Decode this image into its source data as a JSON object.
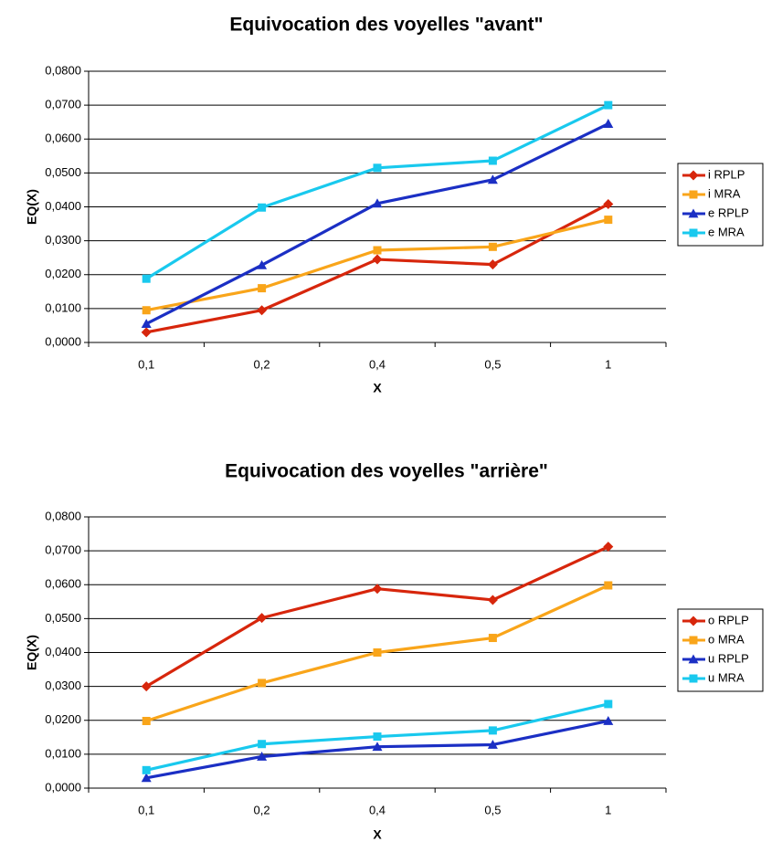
{
  "chart_data": [
    {
      "type": "line",
      "title": "Equivocation des voyelles \"avant\"",
      "xlabel": "X",
      "ylabel": "EQ(X)",
      "categories": [
        "0,1",
        "0,2",
        "0,4",
        "0,5",
        "1"
      ],
      "ylim": [
        0,
        0.08
      ],
      "yticks": [
        "0,0000",
        "0,0100",
        "0,0200",
        "0,0300",
        "0,0400",
        "0,0500",
        "0,0600",
        "0,0700",
        "0,0800"
      ],
      "grid": "horizontal",
      "legend": "right",
      "series": [
        {
          "name": "i RPLP",
          "color": "#d7260c",
          "marker": "diamond",
          "values": [
            0.003,
            0.0095,
            0.0245,
            0.023,
            0.0408
          ]
        },
        {
          "name": "i MRA",
          "color": "#f9a51a",
          "marker": "square",
          "values": [
            0.0095,
            0.016,
            0.0272,
            0.0282,
            0.0362
          ]
        },
        {
          "name": "e RPLP",
          "color": "#1b2fc4",
          "marker": "triangle",
          "values": [
            0.0055,
            0.0228,
            0.041,
            0.048,
            0.0645
          ]
        },
        {
          "name": "e MRA",
          "color": "#19c9ee",
          "marker": "square",
          "values": [
            0.0188,
            0.0398,
            0.0515,
            0.0536,
            0.07
          ]
        }
      ]
    },
    {
      "type": "line",
      "title": "Equivocation des voyelles \"arrière\"",
      "xlabel": "X",
      "ylabel": "EQ(X)",
      "categories": [
        "0,1",
        "0,2",
        "0,4",
        "0,5",
        "1"
      ],
      "ylim": [
        0,
        0.08
      ],
      "yticks": [
        "0,0000",
        "0,0100",
        "0,0200",
        "0,0300",
        "0,0400",
        "0,0500",
        "0,0600",
        "0,0700",
        "0,0800"
      ],
      "grid": "horizontal",
      "legend": "right",
      "series": [
        {
          "name": "o RPLP",
          "color": "#d7260c",
          "marker": "diamond",
          "values": [
            0.03,
            0.0502,
            0.0588,
            0.0555,
            0.0712
          ]
        },
        {
          "name": "o MRA",
          "color": "#f9a51a",
          "marker": "square",
          "values": [
            0.0198,
            0.031,
            0.04,
            0.0443,
            0.0598
          ]
        },
        {
          "name": "u RPLP",
          "color": "#1b2fc4",
          "marker": "triangle",
          "values": [
            0.003,
            0.0093,
            0.0122,
            0.0128,
            0.0198
          ]
        },
        {
          "name": "u MRA",
          "color": "#19c9ee",
          "marker": "square",
          "values": [
            0.0053,
            0.013,
            0.0152,
            0.017,
            0.0248
          ]
        }
      ]
    }
  ]
}
